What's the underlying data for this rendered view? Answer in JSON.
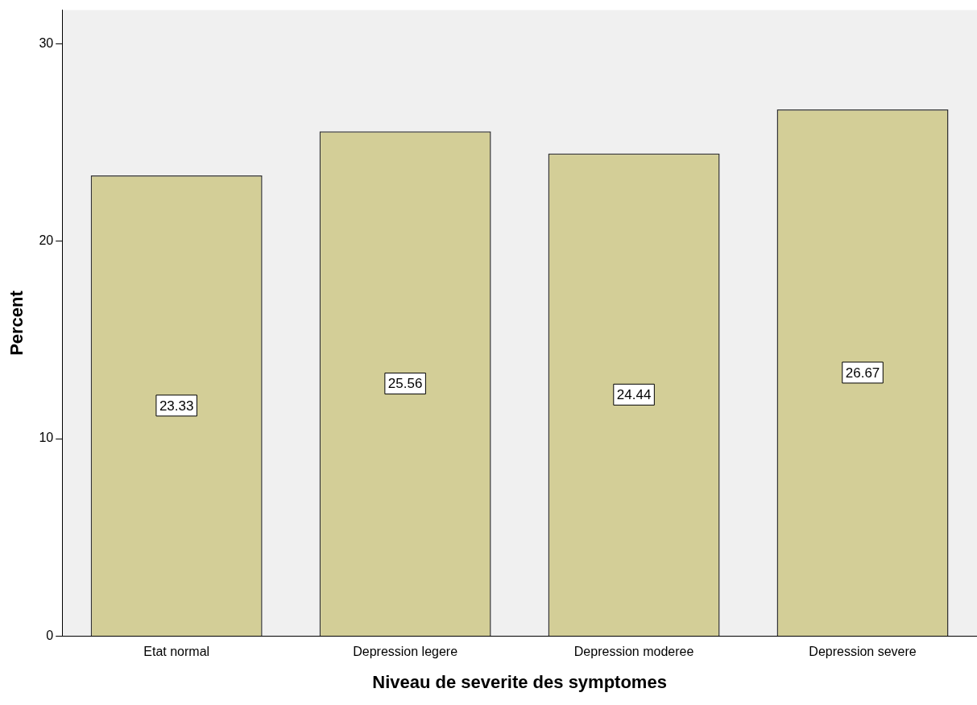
{
  "chart_data": {
    "type": "bar",
    "xlabel": "Niveau de severite des symptomes",
    "ylabel": "Percent",
    "categories": [
      "Etat normal",
      "Depression legere",
      "Depression moderee",
      "Depression severe"
    ],
    "values": [
      23.33,
      25.56,
      24.44,
      26.67
    ],
    "color": "#d3ce97",
    "ylim": [
      0,
      31.7
    ],
    "yticks": [
      0,
      10,
      20,
      30
    ],
    "grid": false,
    "legend": false,
    "data_labels": true
  }
}
